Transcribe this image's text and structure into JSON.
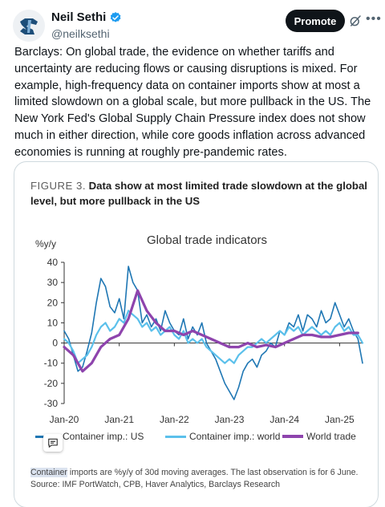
{
  "author": {
    "display_name": "Neil Sethi",
    "handle": "@neilksethi",
    "verified": true,
    "avatar_icon": "avatar-logo-icon"
  },
  "actions": {
    "promote_label": "Promote",
    "grok_icon": "grok-icon",
    "more_icon": "more-icon"
  },
  "tweet_text": "Barclays: On global trade, the evidence on whether tariffs and uncertainty are reducing flows or causing disruptions is mixed. For example, high-frequency data on container imports show at most a limited slowdown on a global scale, but more pullback in the US. The New York Fed's Global Supply Chain Pressure index does not show much in either direction, while core goods inflation across advanced economies is running at roughly pre-pandemic rates.",
  "figure": {
    "number": "FIGURE 3.",
    "title": "Data show at most limited trade slowdown at the global level, but more pullback in the US",
    "note_highlight": "Container",
    "note_rest": " imports are %y/y of 30d moving averages. The last observation is for 6 June.",
    "source": "Source: IMF PortWatch, CPB, Haver Analytics, Barclays Research"
  },
  "colors": {
    "us": "#1f77b4",
    "world": "#5bc0eb",
    "trade": "#8e44ad",
    "brand": "#0f1419"
  },
  "chart_data": {
    "type": "line",
    "title": "Global trade indicators",
    "ylabel": "%y/y",
    "xlabel": "",
    "ylim": [
      -30,
      40
    ],
    "yticks": [
      -30,
      -20,
      -10,
      0,
      10,
      20,
      30,
      40
    ],
    "x_tick_labels": [
      "Jan-20",
      "Jan-21",
      "Jan-22",
      "Jan-23",
      "Jan-24",
      "Jan-25"
    ],
    "x_tick_dates": [
      "2020-01",
      "2021-01",
      "2022-01",
      "2023-01",
      "2024-01",
      "2025-01"
    ],
    "xlim": [
      "2020-01",
      "2025-06"
    ],
    "legend_position": "bottom",
    "grid": false,
    "series": [
      {
        "name": "Container imp.: US",
        "dates": [
          "2020-01",
          "2020-02",
          "2020-03",
          "2020-04",
          "2020-05",
          "2020-06",
          "2020-07",
          "2020-08",
          "2020-09",
          "2020-10",
          "2020-11",
          "2020-12",
          "2021-01",
          "2021-02",
          "2021-03",
          "2021-04",
          "2021-05",
          "2021-06",
          "2021-07",
          "2021-08",
          "2021-09",
          "2021-10",
          "2021-11",
          "2021-12",
          "2022-01",
          "2022-02",
          "2022-03",
          "2022-04",
          "2022-05",
          "2022-06",
          "2022-07",
          "2022-08",
          "2022-09",
          "2022-10",
          "2022-11",
          "2022-12",
          "2023-01",
          "2023-02",
          "2023-03",
          "2023-04",
          "2023-05",
          "2023-06",
          "2023-07",
          "2023-08",
          "2023-09",
          "2023-10",
          "2023-11",
          "2023-12",
          "2024-01",
          "2024-02",
          "2024-03",
          "2024-04",
          "2024-05",
          "2024-06",
          "2024-07",
          "2024-08",
          "2024-09",
          "2024-10",
          "2024-11",
          "2024-12",
          "2025-01",
          "2025-02",
          "2025-03",
          "2025-04",
          "2025-05",
          "2025-06"
        ],
        "values": [
          6,
          2,
          -6,
          -14,
          -12,
          -4,
          5,
          20,
          32,
          28,
          18,
          15,
          22,
          12,
          38,
          30,
          26,
          10,
          14,
          8,
          12,
          6,
          16,
          10,
          6,
          4,
          12,
          2,
          8,
          4,
          10,
          0,
          -4,
          -8,
          -14,
          -20,
          -24,
          -28,
          -22,
          -14,
          -10,
          -8,
          -12,
          -6,
          -4,
          0,
          -2,
          6,
          4,
          10,
          8,
          14,
          6,
          14,
          12,
          8,
          16,
          10,
          12,
          20,
          14,
          8,
          12,
          6,
          2,
          -10
        ]
      },
      {
        "name": "Container imp.: world",
        "dates": [
          "2020-01",
          "2020-02",
          "2020-03",
          "2020-04",
          "2020-05",
          "2020-06",
          "2020-07",
          "2020-08",
          "2020-09",
          "2020-10",
          "2020-11",
          "2020-12",
          "2021-01",
          "2021-02",
          "2021-03",
          "2021-04",
          "2021-05",
          "2021-06",
          "2021-07",
          "2021-08",
          "2021-09",
          "2021-10",
          "2021-11",
          "2021-12",
          "2022-01",
          "2022-02",
          "2022-03",
          "2022-04",
          "2022-05",
          "2022-06",
          "2022-07",
          "2022-08",
          "2022-09",
          "2022-10",
          "2022-11",
          "2022-12",
          "2023-01",
          "2023-02",
          "2023-03",
          "2023-04",
          "2023-05",
          "2023-06",
          "2023-07",
          "2023-08",
          "2023-09",
          "2023-10",
          "2023-11",
          "2023-12",
          "2024-01",
          "2024-02",
          "2024-03",
          "2024-04",
          "2024-05",
          "2024-06",
          "2024-07",
          "2024-08",
          "2024-09",
          "2024-10",
          "2024-11",
          "2024-12",
          "2025-01",
          "2025-02",
          "2025-03",
          "2025-04",
          "2025-05",
          "2025-06"
        ],
        "values": [
          2,
          0,
          -4,
          -10,
          -8,
          -6,
          -2,
          4,
          8,
          10,
          6,
          8,
          12,
          10,
          16,
          14,
          12,
          8,
          10,
          6,
          8,
          4,
          6,
          8,
          4,
          2,
          6,
          0,
          2,
          0,
          2,
          -2,
          -4,
          -6,
          -8,
          -10,
          -8,
          -10,
          -6,
          -4,
          -2,
          -2,
          0,
          2,
          0,
          2,
          4,
          6,
          4,
          8,
          6,
          8,
          4,
          6,
          8,
          6,
          4,
          6,
          4,
          8,
          10,
          6,
          8,
          4,
          4,
          0
        ]
      },
      {
        "name": "World trade",
        "dates": [
          "2020-01",
          "2020-03",
          "2020-05",
          "2020-07",
          "2020-09",
          "2020-11",
          "2021-01",
          "2021-03",
          "2021-05",
          "2021-07",
          "2021-09",
          "2021-11",
          "2022-01",
          "2022-03",
          "2022-05",
          "2022-07",
          "2022-09",
          "2022-11",
          "2023-01",
          "2023-03",
          "2023-05",
          "2023-07",
          "2023-09",
          "2023-11",
          "2024-01",
          "2024-03",
          "2024-05",
          "2024-07",
          "2024-09",
          "2024-11",
          "2025-01",
          "2025-03",
          "2025-05"
        ],
        "values": [
          -2,
          -6,
          -14,
          -10,
          -2,
          2,
          4,
          12,
          26,
          16,
          10,
          6,
          6,
          4,
          6,
          4,
          2,
          0,
          -2,
          -2,
          0,
          -2,
          -1,
          -2,
          0,
          2,
          4,
          4,
          3,
          3,
          4,
          5,
          5
        ]
      }
    ]
  }
}
